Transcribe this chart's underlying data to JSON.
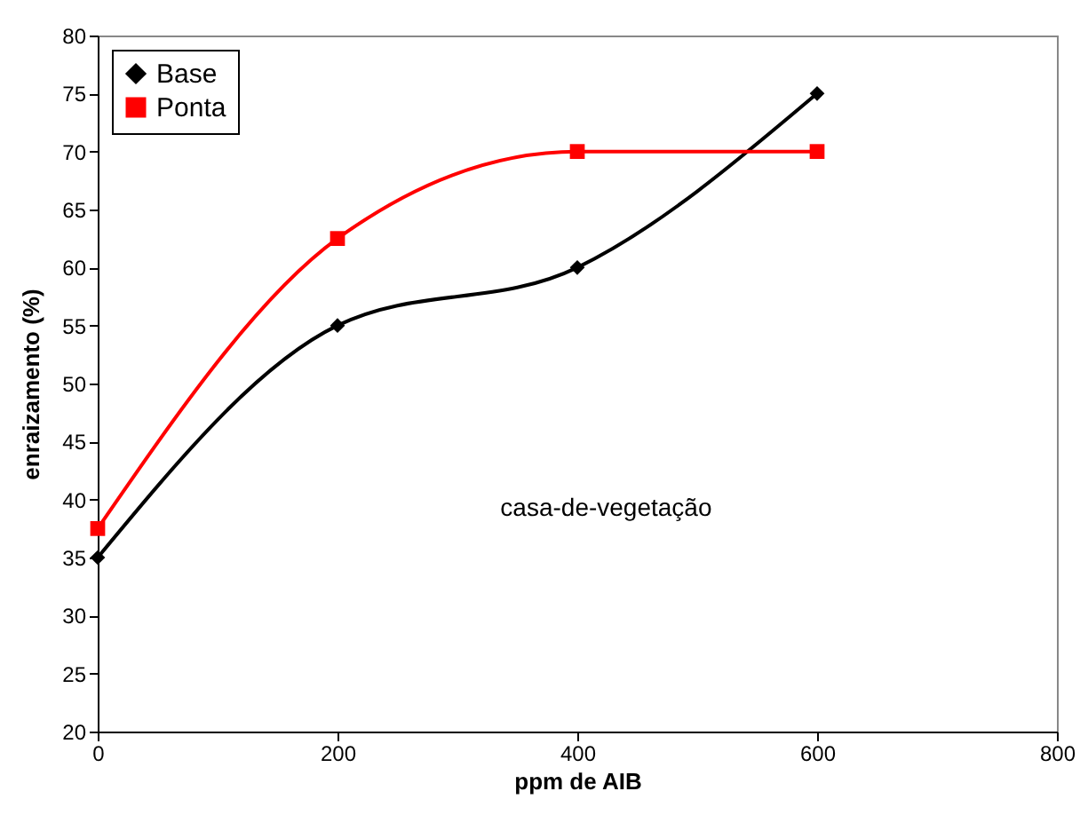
{
  "chart_data": {
    "type": "line",
    "xlabel": "ppm de AIB",
    "ylabel": "enraizamento (%)",
    "x": [
      0,
      200,
      400,
      600
    ],
    "series": [
      {
        "name": "Base",
        "color": "#000000",
        "marker": "diamond",
        "values": [
          35,
          55,
          60,
          75
        ]
      },
      {
        "name": "Ponta",
        "color": "#ff0000",
        "marker": "square",
        "values": [
          37.5,
          62.5,
          70,
          70
        ]
      }
    ],
    "xlim": [
      0,
      800
    ],
    "xticks": [
      0,
      200,
      400,
      600,
      800
    ],
    "ylim": [
      20,
      80
    ],
    "yticks": [
      20,
      25,
      30,
      35,
      40,
      45,
      50,
      55,
      60,
      65,
      70,
      75,
      80
    ],
    "annotations": [
      "casa-de-vegetação"
    ],
    "grid": false,
    "legend": "top left",
    "line_style": "solid"
  }
}
